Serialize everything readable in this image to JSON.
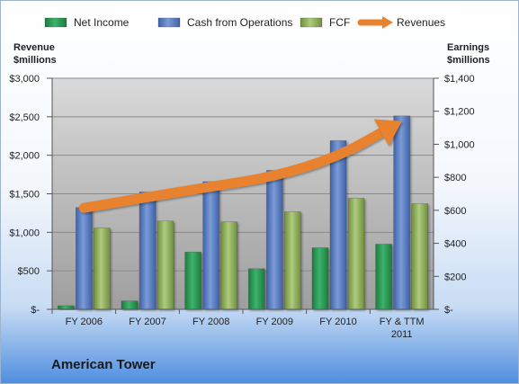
{
  "chart_data": {
    "type": "bar",
    "footer_title": "American Tower",
    "left_axis_label": [
      "Revenue",
      "$millions"
    ],
    "right_axis_label": [
      "Earnings",
      "$millions"
    ],
    "categories": [
      [
        "FY 2006"
      ],
      [
        "FY 2007"
      ],
      [
        "FY 2008"
      ],
      [
        "FY 2009"
      ],
      [
        "FY 2010"
      ],
      [
        "FY & TTM",
        "2011"
      ]
    ],
    "left_ticks": [
      "$-",
      "$500",
      "$1,000",
      "$1,500",
      "$2,000",
      "$2,500",
      "$3,000"
    ],
    "right_ticks": [
      "$-",
      "$200",
      "$400",
      "$600",
      "$800",
      "$1,000",
      "$1,200",
      "$1,400"
    ],
    "ylim_left": [
      0,
      3000
    ],
    "ylim_right": [
      0,
      1400
    ],
    "grid": true,
    "legend_position": "top",
    "colors": {
      "net_income": "#2e9a58",
      "cash_from_operations": "#5a7fc1",
      "fcf": "#8fb05c",
      "revenues": "#e9822e",
      "plot_top": "#dadada",
      "plot_bottom": "#9e9e9e"
    },
    "series": [
      {
        "name": "Net Income",
        "key": "net_income",
        "kind": "bar",
        "axis": "right",
        "values": [
          22,
          51,
          347,
          246,
          373,
          395
        ]
      },
      {
        "name": "Cash from Operations",
        "key": "cash_from_operations",
        "kind": "bar",
        "axis": "right",
        "values": [
          617,
          711,
          774,
          842,
          1022,
          1172
        ]
      },
      {
        "name": "FCF",
        "key": "fcf",
        "kind": "bar",
        "axis": "right",
        "values": [
          492,
          535,
          530,
          591,
          673,
          640
        ]
      },
      {
        "name": "Revenues",
        "key": "revenues",
        "kind": "line",
        "axis": "left",
        "values": [
          1317,
          1456,
          1594,
          1724,
          1985,
          2443
        ]
      }
    ]
  }
}
